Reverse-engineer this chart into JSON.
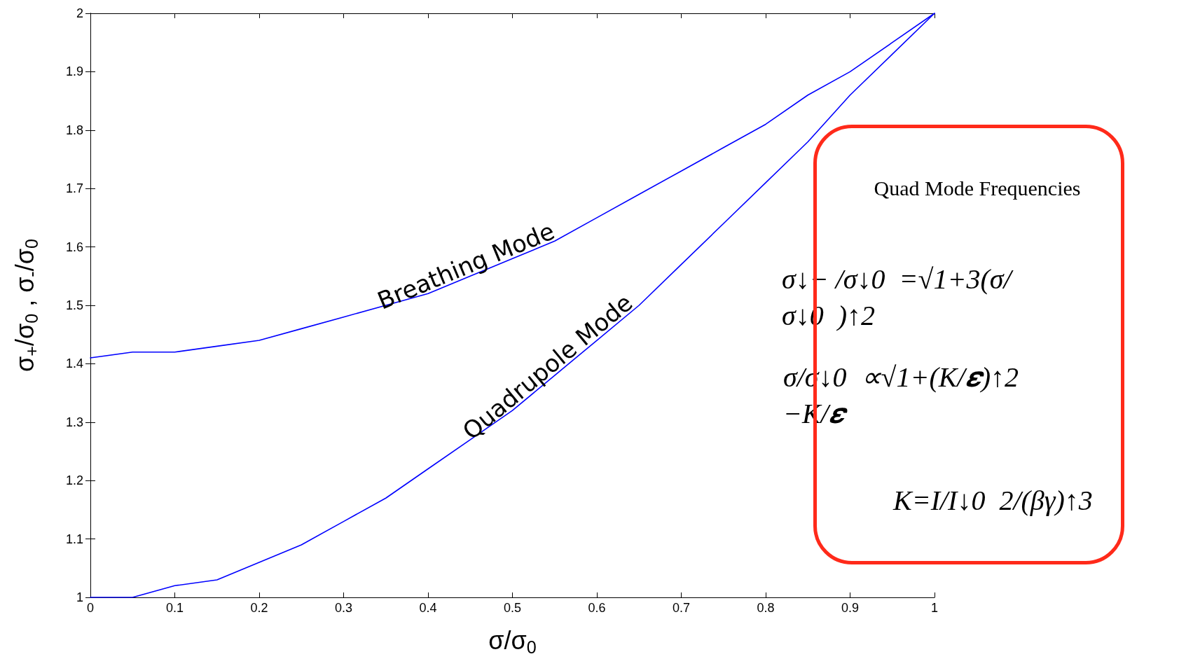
{
  "chart_data": {
    "type": "line",
    "xlabel": "σ/σ$_{0}$",
    "ylabel": "σ$_{+}$/σ$_{0}$ , σ$_{-}$/σ$_{0}$",
    "x": [
      0,
      0.05,
      0.1,
      0.15,
      0.2,
      0.25,
      0.3,
      0.35,
      0.4,
      0.45,
      0.5,
      0.55,
      0.6,
      0.65,
      0.7,
      0.75,
      0.8,
      0.85,
      0.9,
      0.95,
      1
    ],
    "series": [
      {
        "name": "Breathing Mode",
        "color": "#0000ff",
        "values": [
          1.41,
          1.42,
          1.42,
          1.43,
          1.44,
          1.46,
          1.48,
          1.5,
          1.52,
          1.55,
          1.58,
          1.61,
          1.65,
          1.69,
          1.73,
          1.77,
          1.81,
          1.86,
          1.9,
          1.95,
          2.0
        ]
      },
      {
        "name": "Quadrupole Mode",
        "color": "#0000ff",
        "values": [
          1.0,
          1.0,
          1.02,
          1.03,
          1.06,
          1.09,
          1.13,
          1.17,
          1.22,
          1.27,
          1.32,
          1.38,
          1.44,
          1.5,
          1.57,
          1.64,
          1.71,
          1.78,
          1.86,
          1.93,
          2.0
        ]
      }
    ],
    "xlim": [
      0,
      1
    ],
    "xticks": [
      0,
      0.1,
      0.2,
      0.3,
      0.4,
      0.5,
      0.6,
      0.7,
      0.8,
      0.9,
      1
    ],
    "ylim": [
      1,
      2
    ],
    "yticks": [
      1,
      1.1,
      1.2,
      1.3,
      1.4,
      1.5,
      1.6,
      1.7,
      1.8,
      1.9,
      2
    ],
    "grid": false,
    "legend": false,
    "marker": "none",
    "line_style": "solid",
    "annotations": [
      "Quad Mode Frequencies",
      "σ↓− /σ↓0  =√1+3(σ/σ↓0  )↑2",
      "σ/σ↓0  ∝√1+(K/𝜺)↑2 −K/𝜺",
      "K=I/I↓0  2/(βγ)↑3"
    ]
  }
}
